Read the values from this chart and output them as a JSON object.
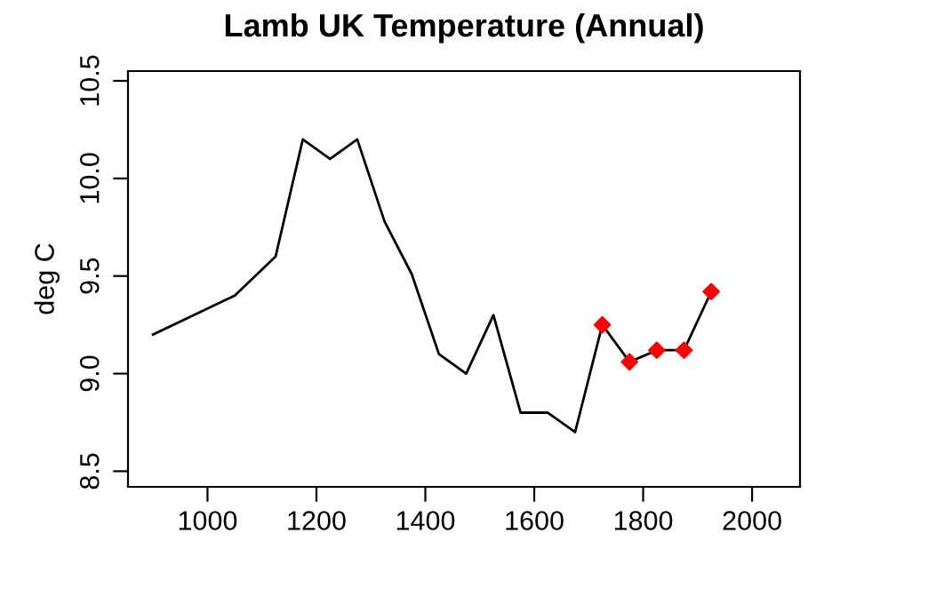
{
  "chart_data": {
    "type": "line",
    "title": "Lamb UK Temperature (Annual)",
    "ylabel": "deg C",
    "series": [
      {
        "color": "#000000",
        "marker": "none",
        "x": [
          900,
          1050,
          1125,
          1175,
          1225,
          1275,
          1325,
          1375,
          1425,
          1475,
          1525,
          1575,
          1625,
          1675,
          1725,
          1775,
          1825,
          1875,
          1925
        ],
        "values": [
          9.2,
          9.4,
          9.6,
          10.2,
          10.1,
          10.2,
          9.78,
          9.51,
          9.1,
          9.0,
          9.3,
          8.8,
          8.8,
          8.7,
          9.25,
          9.06,
          9.12,
          9.12,
          9.42
        ]
      },
      {
        "type": "scatter",
        "color": "#ff0000",
        "marker": "diamond",
        "x": [
          1725,
          1775,
          1825,
          1875,
          1925
        ],
        "values": [
          9.25,
          9.06,
          9.12,
          9.12,
          9.42
        ]
      }
    ],
    "xlim": [
      854,
      2088
    ],
    "xticks": [
      1000,
      1200,
      1400,
      1600,
      1800,
      2000
    ],
    "ylim": [
      8.42,
      10.55
    ],
    "yticks": [
      8.5,
      {
        "value": 9,
        "label": "9.0"
      },
      9.5,
      {
        "value": 10,
        "label": "10.0"
      },
      10.5
    ],
    "grid": false,
    "legend": false
  }
}
